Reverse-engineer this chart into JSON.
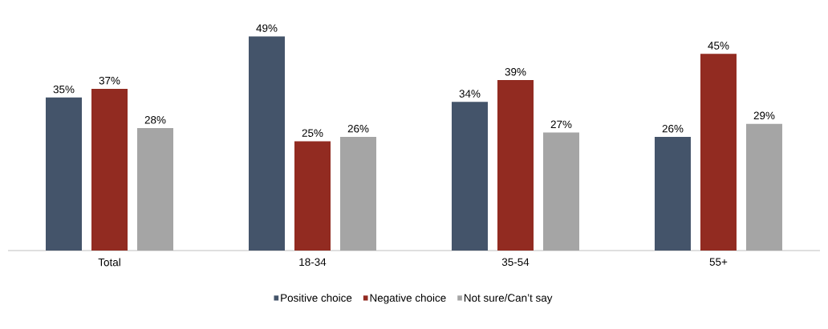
{
  "chart_data": {
    "type": "bar",
    "categories": [
      "Total",
      "18-34",
      "35-54",
      "55+"
    ],
    "legend": "bottom",
    "series": [
      {
        "name": "Positive choice",
        "color": "#44546a",
        "values": [
          35,
          49,
          34,
          26
        ],
        "value_labels": [
          "35%",
          "49%",
          "34%",
          "26%"
        ]
      },
      {
        "name": "Negative choice",
        "color": "#922b21",
        "values": [
          37,
          25,
          39,
          45
        ],
        "value_labels": [
          "37%",
          "25%",
          "39%",
          "45%"
        ]
      },
      {
        "name": "Not sure/Can’t say",
        "color": "#a5a5a5",
        "values": [
          28,
          26,
          27,
          29
        ],
        "value_labels": [
          "28%",
          "26%",
          "27%",
          "29%"
        ]
      }
    ]
  }
}
